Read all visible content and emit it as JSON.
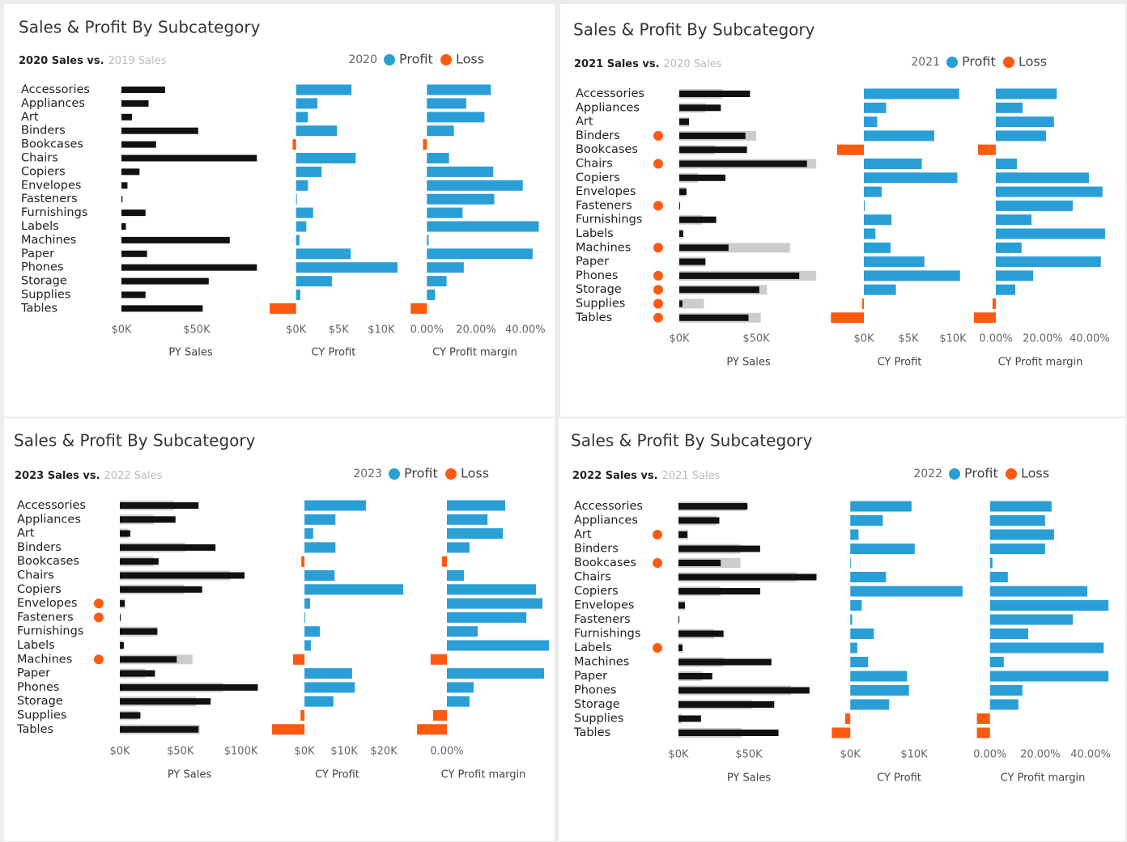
{
  "chart_data": [
    {
      "type": "bar",
      "title": "Sales & Profit By Subcategory",
      "subtitle_current": "2020 Sales vs.",
      "subtitle_previous": "2019 Sales",
      "legend_title": "2020",
      "legend": [
        {
          "name": "Profit",
          "color": "#2a9fd6"
        },
        {
          "name": "Loss",
          "color": "#fb5a10"
        }
      ],
      "categories": [
        "Accessories",
        "Appliances",
        "Art",
        "Binders",
        "Bookcases",
        "Chairs",
        "Copiers",
        "Envelopes",
        "Fasteners",
        "Furnishings",
        "Labels",
        "Machines",
        "Paper",
        "Phones",
        "Storage",
        "Supplies",
        "Tables"
      ],
      "flags": [
        false,
        false,
        false,
        false,
        false,
        false,
        false,
        false,
        false,
        false,
        false,
        false,
        false,
        false,
        false,
        false,
        false
      ],
      "sales": {
        "xlabel": "PY Sales",
        "xlim": [
          0,
          92000
        ],
        "xticks": [
          {
            "value": 0,
            "label": "$0K"
          },
          {
            "value": 50000,
            "label": "$50K"
          }
        ],
        "series": [
          {
            "color": "#111111",
            "values": [
              29000,
              18000,
              7000,
              51000,
              23000,
              90000,
              12000,
              4000,
              700,
              16000,
              3000,
              72000,
              17000,
              90000,
              58000,
              16000,
              54000
            ]
          }
        ]
      },
      "profit": {
        "xlabel": "CY Profit",
        "xlim": [
          -3200,
          12000
        ],
        "xticks": [
          {
            "value": 0,
            "label": "$0K"
          },
          {
            "value": 5000,
            "label": "$5K"
          },
          {
            "value": 10000,
            "label": "$10K"
          }
        ],
        "values": [
          6500,
          2500,
          1400,
          4800,
          -400,
          7000,
          3000,
          1400,
          100,
          2000,
          1200,
          400,
          6400,
          11900,
          4200,
          500,
          -3100
        ]
      },
      "margin": {
        "xlabel": "CY Profit margin",
        "xlim": [
          -7,
          46
        ],
        "xticks": [
          {
            "value": 0,
            "label": "0.00%"
          },
          {
            "value": 20,
            "label": "20.00%"
          },
          {
            "value": 40,
            "label": "40.00%"
          }
        ],
        "values": [
          26,
          16,
          23.4,
          11,
          -1.6,
          9,
          27,
          39,
          27.4,
          14.5,
          45.5,
          0.7,
          43,
          15,
          8,
          3.3,
          -6.6
        ]
      }
    },
    {
      "type": "bar",
      "title": "Sales & Profit By Subcategory",
      "subtitle_current": "2021 Sales vs.",
      "subtitle_previous": "2020 Sales",
      "legend_title": "2021",
      "legend": [
        {
          "name": "Profit",
          "color": "#2a9fd6"
        },
        {
          "name": "Loss",
          "color": "#fb5a10"
        }
      ],
      "categories": [
        "Accessories",
        "Appliances",
        "Art",
        "Binders",
        "Bookcases",
        "Chairs",
        "Copiers",
        "Envelopes",
        "Fasteners",
        "Furnishings",
        "Labels",
        "Machines",
        "Paper",
        "Phones",
        "Storage",
        "Supplies",
        "Tables"
      ],
      "flags": [
        false,
        false,
        false,
        true,
        false,
        true,
        false,
        false,
        true,
        false,
        false,
        true,
        false,
        true,
        true,
        true,
        true
      ],
      "sales": {
        "xlabel": "PY Sales",
        "xlim": [
          0,
          90000
        ],
        "xticks": [
          {
            "value": 0,
            "label": "$0K"
          },
          {
            "value": 50000,
            "label": "$50K"
          }
        ],
        "series": [
          {
            "color": "#cccccc",
            "values": [
              28000,
              17000,
              6500,
              50000,
              23000,
              89000,
              12000,
              4200,
              600,
              15000,
              2100,
              72000,
              17000,
              89000,
              57000,
              16000,
              53000
            ]
          },
          {
            "color": "#111111",
            "values": [
              46000,
              27000,
              6300,
              43000,
              44000,
              83000,
              30000,
              4700,
              500,
              24000,
              2600,
              32000,
              17000,
              78000,
              52000,
              2000,
              45000
            ]
          }
        ]
      },
      "profit": {
        "xlabel": "CY Profit",
        "xlim": [
          -4000,
          12000
        ],
        "xticks": [
          {
            "value": 0,
            "label": "$0K"
          },
          {
            "value": 5000,
            "label": "$5K"
          },
          {
            "value": 10000,
            "label": "$10K"
          }
        ],
        "values": [
          10700,
          2500,
          1500,
          7900,
          -3000,
          6500,
          10500,
          2000,
          100,
          3100,
          1300,
          3000,
          6800,
          10800,
          3600,
          -200,
          -3700
        ]
      },
      "margin": {
        "xlabel": "CY Profit margin",
        "xlim": [
          -10,
          48
        ],
        "xticks": [
          {
            "value": 0,
            "label": "0.00%"
          },
          {
            "value": 20,
            "label": "20.00%"
          },
          {
            "value": 40,
            "label": "40.00%"
          }
        ],
        "values": [
          26,
          11.4,
          24.8,
          21.4,
          -7.6,
          9,
          39.7,
          45.5,
          32.8,
          15.2,
          46.6,
          11,
          44.8,
          15.9,
          8.3,
          -1.4,
          -9.3
        ]
      }
    },
    {
      "type": "bar",
      "title": "Sales & Profit By Subcategory",
      "subtitle_current": "2023 Sales vs.",
      "subtitle_previous": "2022 Sales",
      "legend_title": "2023",
      "legend": [
        {
          "name": "Profit",
          "color": "#2a9fd6"
        },
        {
          "name": "Loss",
          "color": "#fb5a10"
        }
      ],
      "categories": [
        "Accessories",
        "Appliances",
        "Art",
        "Binders",
        "Bookcases",
        "Chairs",
        "Copiers",
        "Envelopes",
        "Fasteners",
        "Furnishings",
        "Labels",
        "Machines",
        "Paper",
        "Phones",
        "Storage",
        "Supplies",
        "Tables"
      ],
      "flags": [
        false,
        false,
        false,
        false,
        false,
        false,
        false,
        true,
        true,
        false,
        false,
        true,
        false,
        false,
        false,
        false,
        false
      ],
      "sales": {
        "xlabel": "PY Sales",
        "xlim": [
          0,
          115000
        ],
        "xticks": [
          {
            "value": 0,
            "label": "$0K"
          },
          {
            "value": 50000,
            "label": "$50K"
          },
          {
            "value": 100000,
            "label": "$100K"
          }
        ],
        "series": [
          {
            "color": "#cccccc",
            "values": [
              45000,
              28000,
              6700,
              54000,
              28000,
              91000,
              53000,
              4700,
              700,
              31000,
              2700,
              60000,
              21000,
              85000,
              63000,
              15000,
              66000
            ]
          },
          {
            "color": "#111111",
            "values": [
              65000,
              46000,
              8700,
              79000,
              32000,
              103000,
              68000,
              4000,
              700,
              31000,
              3300,
              47000,
              29000,
              114000,
              75000,
              17000,
              65000
            ]
          }
        ]
      },
      "profit": {
        "xlabel": "CY Profit",
        "xlim": [
          -9000,
          25500
        ],
        "xticks": [
          {
            "value": 0,
            "label": "$0K"
          },
          {
            "value": 10000,
            "label": "$10K"
          },
          {
            "value": 20000,
            "label": "$20K"
          }
        ],
        "values": [
          15500,
          7800,
          2200,
          7800,
          -800,
          7600,
          24900,
          1400,
          200,
          3900,
          1600,
          -2900,
          12000,
          12700,
          7300,
          -1000,
          -8200
        ]
      },
      "margin": {
        "xlabel": "CY Profit margin",
        "xlim": [
          -13,
          43
        ],
        "xticks": [
          {
            "value": 0,
            "label": "0.00%"
          }
        ],
        "values": [
          24,
          16.7,
          23,
          9.3,
          -2,
          7,
          36.7,
          39.3,
          32.7,
          12.7,
          42,
          -6.7,
          40,
          11,
          9.3,
          -5.7,
          -12.3
        ]
      }
    },
    {
      "type": "bar",
      "title": "Sales & Profit By Subcategory",
      "subtitle_current": "2022 Sales vs.",
      "subtitle_previous": "2021 Sales",
      "legend_title": "2022",
      "legend": [
        {
          "name": "Profit",
          "color": "#2a9fd6"
        },
        {
          "name": "Loss",
          "color": "#fb5a10"
        }
      ],
      "categories": [
        "Accessories",
        "Appliances",
        "Art",
        "Binders",
        "Bookcases",
        "Chairs",
        "Copiers",
        "Envelopes",
        "Fasteners",
        "Furnishings",
        "Labels",
        "Machines",
        "Paper",
        "Phones",
        "Storage",
        "Supplies",
        "Tables"
      ],
      "flags": [
        false,
        false,
        true,
        false,
        true,
        false,
        false,
        false,
        false,
        false,
        true,
        false,
        false,
        false,
        false,
        false,
        false
      ],
      "sales": {
        "xlabel": "PY Sales",
        "xlim": [
          0,
          100000
        ],
        "xticks": [
          {
            "value": 0,
            "label": "$0K"
          },
          {
            "value": 50000,
            "label": "$50K"
          }
        ],
        "series": [
          {
            "color": "#cccccc",
            "values": [
              48000,
              27000,
              6900,
              44000,
              44000,
              84000,
              30000,
              4600,
              600,
              25000,
              2900,
              32000,
              17000,
              80000,
              52000,
              2300,
              45000
            ]
          },
          {
            "color": "#111111",
            "values": [
              49000,
              29000,
              6300,
              58000,
              30000,
              98000,
              58000,
              4600,
              600,
              32000,
              2900,
              66000,
              24000,
              93000,
              68000,
              16000,
              71000
            ]
          }
        ]
      },
      "profit": {
        "xlabel": "CY Profit",
        "xlim": [
          -3200,
          18500
        ],
        "xticks": [
          {
            "value": 0,
            "label": "$0K"
          },
          {
            "value": 10000,
            "label": "$10K"
          }
        ],
        "values": [
          9600,
          5100,
          1300,
          10100,
          100,
          5600,
          17600,
          1800,
          300,
          3700,
          1100,
          2800,
          8900,
          9200,
          6100,
          -800,
          -2900
        ]
      },
      "margin": {
        "xlabel": "CY Profit margin",
        "xlim": [
          -7,
          49
        ],
        "xticks": [
          {
            "value": 0,
            "label": "0.00%"
          },
          {
            "value": 20,
            "label": "20.00%"
          },
          {
            "value": 40,
            "label": "40.00%"
          }
        ],
        "values": [
          24.5,
          21.9,
          25.5,
          21.9,
          1,
          7.1,
          38.7,
          47.1,
          32.9,
          15.2,
          45.2,
          5.5,
          47.1,
          12.9,
          11.3,
          -5.2,
          -5.2
        ]
      }
    }
  ]
}
